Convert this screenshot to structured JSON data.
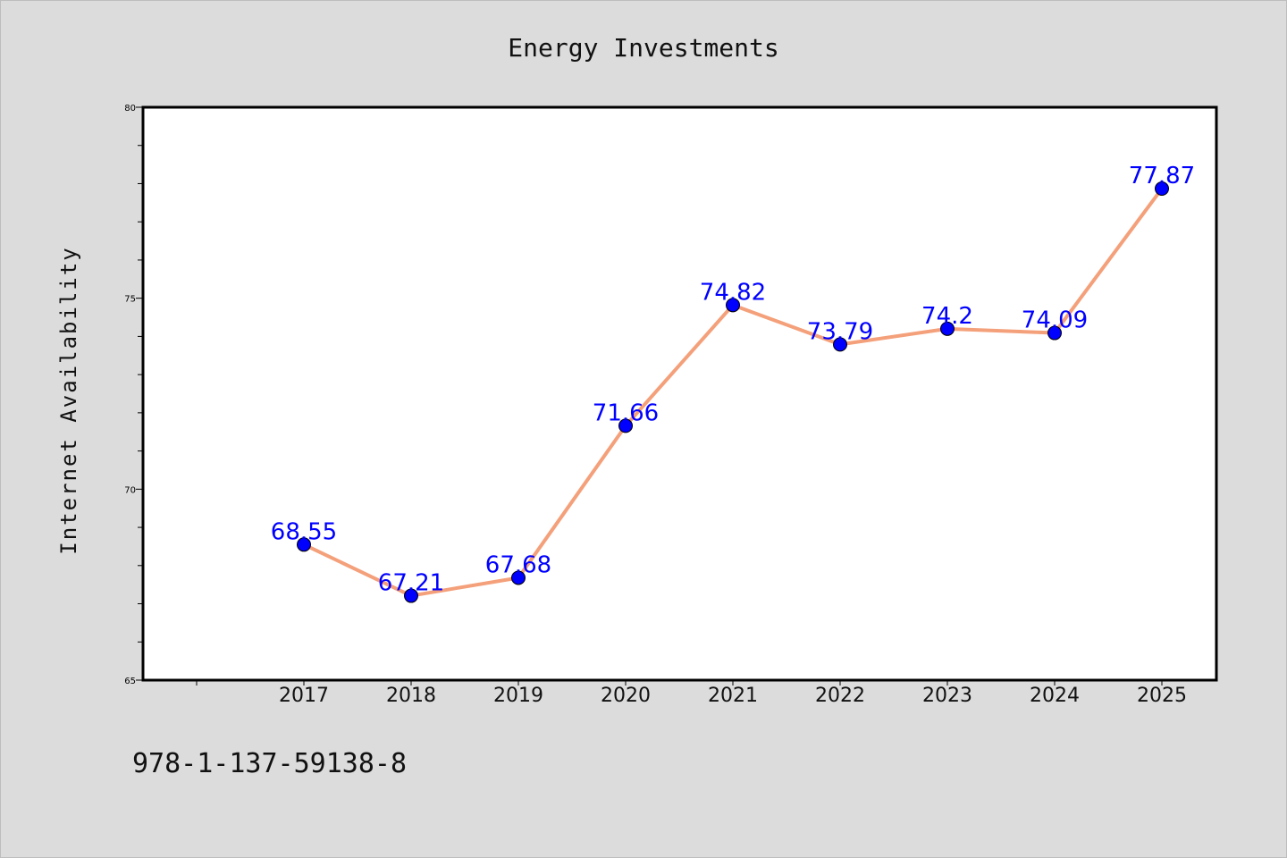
{
  "colors": {
    "background": "#dcdcdc",
    "plot_background": "#ffffff",
    "line": "#f4a07a",
    "marker": "#0000ff",
    "data_label": "#0000ff"
  },
  "footer": {
    "isbn": "978-1-137-59138-8"
  },
  "chart_data": {
    "type": "line",
    "title": "Energy Investments",
    "xlabel": "",
    "ylabel": "Internet Availability",
    "categories": [
      "2017",
      "2018",
      "2019",
      "2020",
      "2021",
      "2022",
      "2023",
      "2024",
      "2025"
    ],
    "series": [
      {
        "values": [
          68.55,
          67.21,
          67.68,
          71.66,
          74.82,
          73.79,
          74.2,
          74.09,
          77.87
        ],
        "labels": [
          "68.55",
          "67.21",
          "67.68",
          "71.66",
          "74.82",
          "73.79",
          "74.2",
          "74.09",
          "77.87"
        ]
      }
    ],
    "ylim": [
      65,
      80
    ],
    "yticks": [
      65,
      70,
      75,
      80
    ],
    "ytick_labels": [
      "65",
      "70",
      "75",
      "80"
    ],
    "grid": false,
    "legend": "none",
    "markers": true
  }
}
